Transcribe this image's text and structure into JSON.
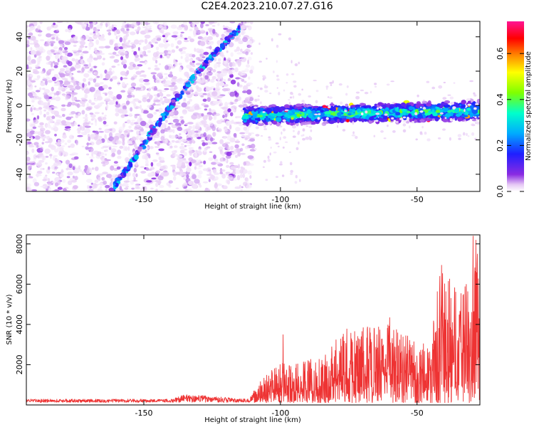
{
  "title": "C2E4.2023.210.07.27.G16",
  "chart_data": [
    {
      "type": "heatmap",
      "xlabel": "Height of straight line (km)",
      "ylabel": "Frequency (Hz)",
      "xlim": [
        -193,
        -27
      ],
      "ylim": [
        -50,
        49
      ],
      "xticks": [
        -150,
        -100,
        -50
      ],
      "yticks": [
        -40,
        -20,
        0,
        20,
        40
      ],
      "colorbar": {
        "label": "Normalized spectral amplitude",
        "range": [
          0,
          0.74
        ],
        "ticks": [
          0.0,
          0.2,
          0.4,
          0.6
        ],
        "colormap": [
          "#ffffff",
          "#e6c8f5",
          "#8a2be2",
          "#1f1fff",
          "#00aaff",
          "#00ffcc",
          "#7fff00",
          "#ffff00",
          "#ff8800",
          "#ff0000",
          "#ff1493"
        ]
      },
      "features": [
        {
          "name": "noise-region",
          "x_range": [
            -193,
            -110
          ],
          "y_range": [
            -50,
            49
          ]
        },
        {
          "name": "rising-streak",
          "points": [
            [
              -162,
              -50
            ],
            [
              -148,
              -18
            ],
            [
              -140,
              0
            ],
            [
              -130,
              20
            ],
            [
              -115,
              45
            ]
          ]
        },
        {
          "name": "signal-band",
          "x_range": [
            -113,
            -27
          ],
          "y_start": -6,
          "y_end": -3,
          "half_width": 6
        }
      ]
    },
    {
      "type": "line",
      "xlabel": "Height of straight line (km)",
      "ylabel": "SNR (10 * v/v)",
      "xlim": [
        -193,
        -27
      ],
      "ylim": [
        0,
        8450
      ],
      "xticks": [
        -150,
        -100,
        -50
      ],
      "yticks": [
        2000,
        4000,
        6000,
        8000
      ],
      "color": "#ee3333",
      "envelope": [
        {
          "x": -193,
          "y": 300
        },
        {
          "x": -140,
          "y": 300
        },
        {
          "x": -135,
          "y": 550
        },
        {
          "x": -112,
          "y": 300
        },
        {
          "x": -106,
          "y": 1300
        },
        {
          "x": -100,
          "y": 2000
        },
        {
          "x": -95,
          "y": 2000
        },
        {
          "x": -85,
          "y": 2400
        },
        {
          "x": -75,
          "y": 3800
        },
        {
          "x": -60,
          "y": 4000
        },
        {
          "x": -50,
          "y": 3000
        },
        {
          "x": -45,
          "y": 3500
        },
        {
          "x": -41,
          "y": 7000
        },
        {
          "x": -35,
          "y": 5500
        },
        {
          "x": -30,
          "y": 6500
        },
        {
          "x": -27,
          "y": 8300
        }
      ],
      "peaks": [
        {
          "x": -99,
          "y": 3500
        },
        {
          "x": -60,
          "y": 4350
        },
        {
          "x": -41,
          "y": 6950
        },
        {
          "x": -32,
          "y": 6000
        },
        {
          "x": -29.5,
          "y": 8400
        },
        {
          "x": -28.5,
          "y": 8200
        }
      ]
    }
  ]
}
